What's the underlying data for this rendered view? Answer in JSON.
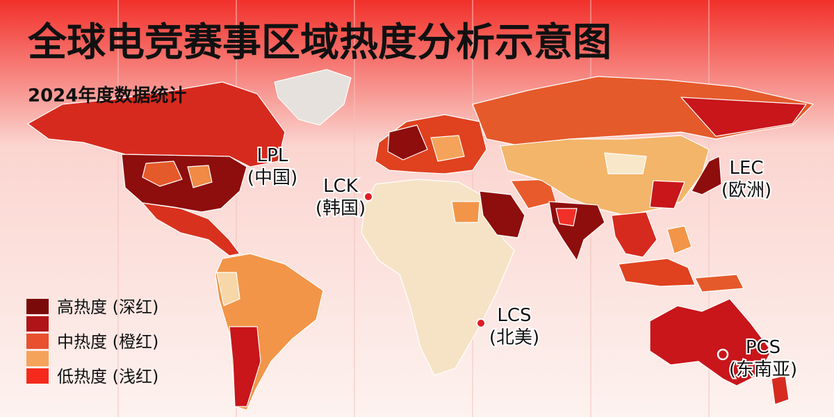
{
  "header": {
    "title": "全球电竞赛事区域热度分析示意图",
    "subtitle": "2024年度数据统计"
  },
  "markers": [
    {
      "name": "LPL",
      "region": "(中国)"
    },
    {
      "name": "LCK",
      "region": "(韩国)"
    },
    {
      "name": "LEC",
      "region": "(欧洲)"
    },
    {
      "name": "LCS",
      "region": "(北美)"
    },
    {
      "name": "PCS",
      "region": "(东南亚)"
    }
  ],
  "legend": {
    "swatches": [
      "#7a0a0a",
      "#b01418",
      "#e8502e",
      "#f5a35a",
      "#f52a1a"
    ],
    "labels": [
      "高热度 (深红)",
      "中热度 (橙红)",
      "低热度 (浅红)"
    ]
  }
}
